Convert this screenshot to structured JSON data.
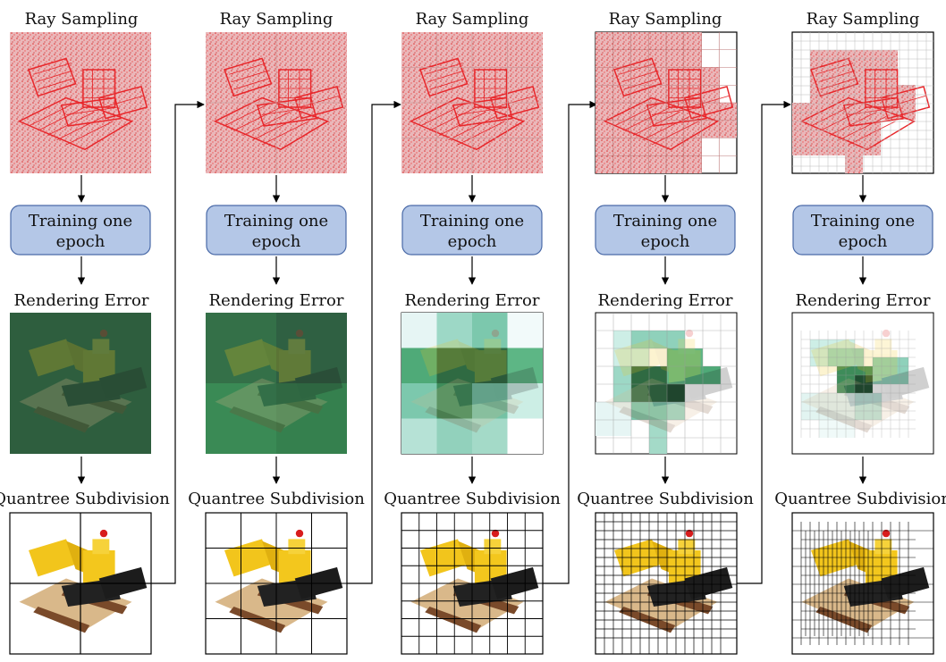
{
  "labels": {
    "ray_sampling": "Ray Sampling",
    "training_line1": "Training one",
    "training_line2": "epoch",
    "rendering_error": "Rendering Error",
    "quantree_subdivision": "Quantree Subdivision"
  },
  "colors": {
    "ray_red": "#e8262a",
    "ray_bg": "#e7a8aa",
    "train_box_fill": "#b4c7e7",
    "train_box_stroke": "#4a6aa8",
    "error_dark": "#2e5e3e",
    "error_mid": "#3a8a55",
    "error_light": "#9dd8c6",
    "error_pale": "#e6f5f4",
    "arrow": "#000000"
  },
  "icons": {
    "loader_model": "loader-model-icon",
    "arrow_down": "arrow-down-icon",
    "connector_arrow": "connector-arrow-icon"
  },
  "stages": [
    {
      "id": 1,
      "name": "stage-1"
    },
    {
      "id": 2,
      "name": "stage-2"
    },
    {
      "id": 3,
      "name": "stage-3"
    },
    {
      "id": 4,
      "name": "stage-4"
    },
    {
      "id": 5,
      "name": "stage-5"
    }
  ]
}
